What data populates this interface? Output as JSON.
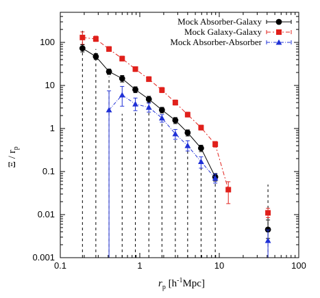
{
  "chart_data": {
    "type": "scatter",
    "xlabel": "r_p [h^-1Mpc]",
    "ylabel": "Ξ / r_p",
    "xscale": "log",
    "yscale": "log",
    "xlim": [
      0.1,
      100
    ],
    "ylim": [
      0.001,
      500
    ],
    "xticks": [
      {
        "value": 0.1,
        "label": "0.1"
      },
      {
        "value": 1,
        "label": "1"
      },
      {
        "value": 10,
        "label": "10"
      },
      {
        "value": 100,
        "label": "100"
      }
    ],
    "yticks": [
      {
        "value": 0.001,
        "label": "0.001"
      },
      {
        "value": 0.01,
        "label": "0.01"
      },
      {
        "value": 0.1,
        "label": "0.1"
      },
      {
        "value": 1,
        "label": "1"
      },
      {
        "value": 10,
        "label": "10"
      },
      {
        "value": 100,
        "label": "100"
      }
    ],
    "legend_position": "top-right",
    "series": [
      {
        "name": "Mock Absorber-Galaxy",
        "color": "#000000",
        "marker": "circle",
        "dash": "",
        "x": [
          0.19,
          0.28,
          0.41,
          0.6,
          0.88,
          1.3,
          1.9,
          2.8,
          4.0,
          5.9,
          8.9,
          41
        ],
        "y": [
          73,
          47,
          21,
          14.5,
          8.0,
          4.8,
          2.7,
          1.55,
          0.8,
          0.35,
          0.075,
          0.0045
        ],
        "ylo": [
          60,
          40,
          18,
          12,
          6.8,
          4.0,
          2.3,
          1.3,
          0.67,
          0.29,
          0.06,
          0.0028
        ],
        "yhi": [
          88,
          55,
          24,
          17,
          9.3,
          5.6,
          3.1,
          1.8,
          0.93,
          0.41,
          0.09,
          0.0075
        ],
        "connect": [
          0,
          1,
          2,
          3,
          4,
          5,
          6,
          7,
          8,
          9,
          10
        ]
      },
      {
        "name": "Mock Galaxy-Galaxy",
        "color": "#e0201b",
        "marker": "square",
        "dash": "6,3,2,3",
        "x": [
          0.19,
          0.28,
          0.41,
          0.6,
          0.88,
          1.3,
          1.9,
          2.8,
          4.0,
          5.9,
          8.9,
          13,
          41
        ],
        "y": [
          130,
          120,
          70,
          42,
          24,
          14,
          7.8,
          4.0,
          2.1,
          1.05,
          0.43,
          0.038,
          0.011
        ],
        "ylo": [
          90,
          105,
          62,
          37,
          21,
          12.4,
          6.8,
          3.5,
          1.85,
          0.92,
          0.37,
          0.018,
          0.0085
        ],
        "yhi": [
          175,
          140,
          80,
          48,
          27,
          16,
          9.0,
          4.6,
          2.4,
          1.2,
          0.5,
          0.058,
          0.014
        ],
        "connect": [
          0,
          1,
          2,
          3,
          4,
          5,
          6,
          7,
          8,
          9,
          10,
          11
        ]
      },
      {
        "name": "Mock Absorber-Absorber",
        "color": "#1f30d6",
        "marker": "triangle",
        "dash": "5,2,1,2",
        "x": [
          0.41,
          0.6,
          0.88,
          1.3,
          1.9,
          2.8,
          4.0,
          5.9,
          8.9,
          41
        ],
        "y": [
          2.7,
          6.0,
          3.7,
          3.1,
          1.75,
          0.75,
          0.4,
          0.17,
          0.07,
          0.0025
        ],
        "ylo": [
          0.001,
          3.3,
          2.6,
          2.4,
          1.4,
          0.56,
          0.3,
          0.12,
          0.054,
          0.001
        ],
        "yhi": [
          7.5,
          9.5,
          5.1,
          3.9,
          2.1,
          0.95,
          0.52,
          0.22,
          0.088,
          0.0044
        ],
        "connect": [
          0,
          1,
          2,
          3,
          4,
          5,
          6,
          7,
          8
        ]
      }
    ],
    "drop_lines": [
      {
        "x": 0.19,
        "ytop": 210
      },
      {
        "x": 0.28,
        "ytop": 70
      },
      {
        "x": 0.41,
        "ytop": 16
      },
      {
        "x": 0.6,
        "ytop": 2.2
      },
      {
        "x": 0.88,
        "ytop": 2.6
      },
      {
        "x": 1.3,
        "ytop": 2.4
      },
      {
        "x": 1.9,
        "ytop": 1.4
      },
      {
        "x": 2.8,
        "ytop": 0.56
      },
      {
        "x": 4.0,
        "ytop": 0.3
      },
      {
        "x": 5.9,
        "ytop": 0.12
      },
      {
        "x": 8.9,
        "ytop": 0.054
      },
      {
        "x": 41,
        "ytop": 0.05
      }
    ]
  }
}
